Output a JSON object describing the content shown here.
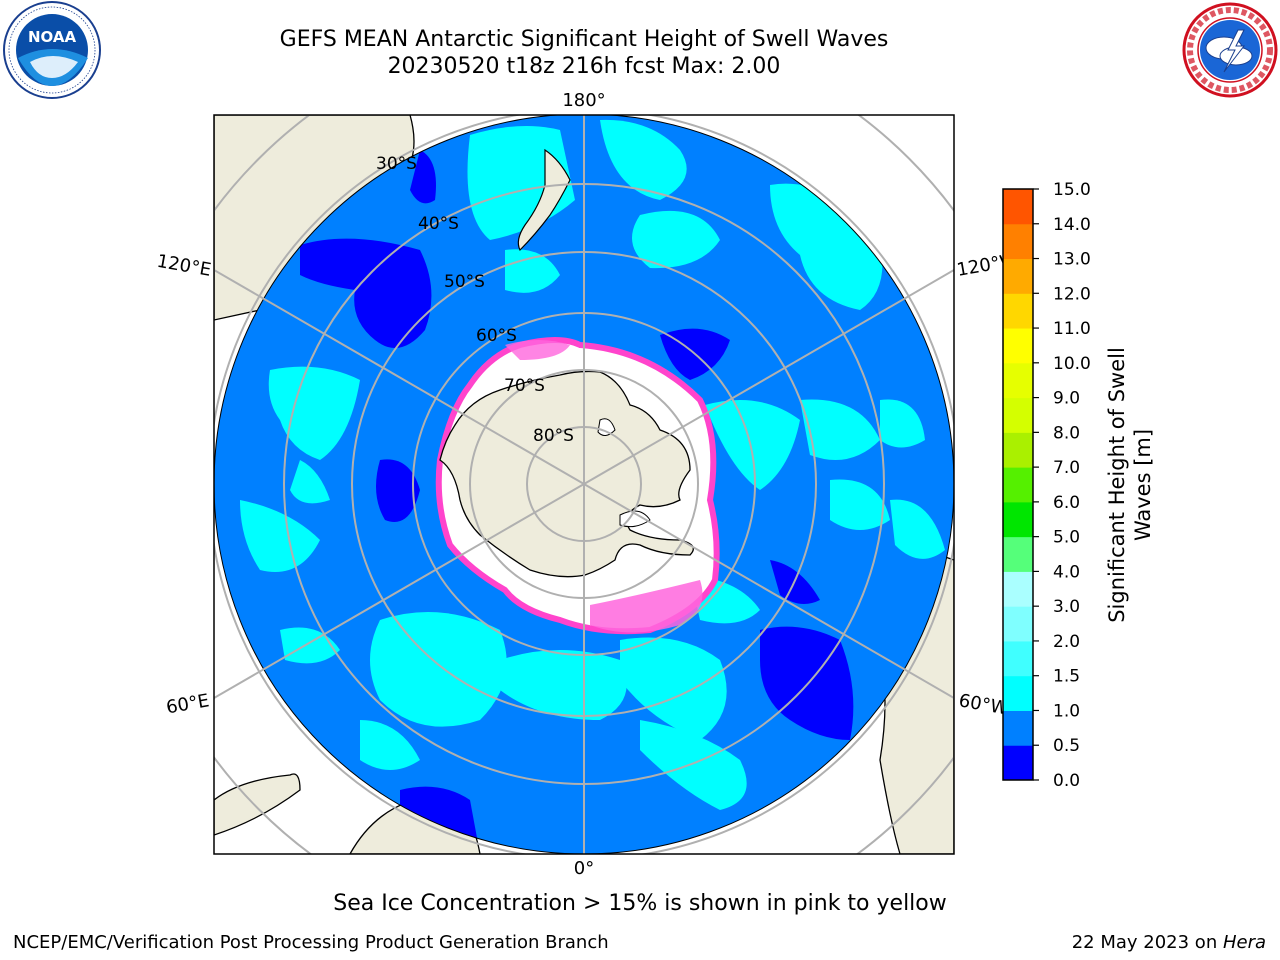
{
  "header": {
    "title_line1": "GEFS MEAN Antarctic Significant Height of Swell Waves",
    "title_line2": "20230520 t18z 216h fcst   Max: 2.00"
  },
  "logos": {
    "noaa": {
      "icon": "noaa-logo",
      "wordmark": "NOAA",
      "ring_text": "NATIONAL OCEANIC AND ATMOSPHERIC ADMINISTRATION · U.S. DEPARTMENT OF COMMERCE"
    },
    "nws": {
      "icon": "nws-logo",
      "ring_text": "NATIONAL WEATHER SERVICE"
    }
  },
  "map": {
    "projection": "south-polar-stereographic",
    "longitude_labels": {
      "top": "180°",
      "bottom": "0°",
      "upper_left": "120°E",
      "lower_left": "60°E",
      "upper_right": "120°W",
      "lower_right": "60°W"
    },
    "latitude_labels": [
      "30°S",
      "40°S",
      "50°S",
      "60°S",
      "70°S",
      "80°S"
    ],
    "colors": {
      "ocean_main": "#0080ff",
      "ocean_low": "#0000ff",
      "ocean_mid": "#00ffff",
      "land": "#eeecdc",
      "ice_edge": "#ff44cc",
      "gridline": "#b0b0b0"
    }
  },
  "colorbar": {
    "label_line1": "Significant Height of Swell",
    "label_line2": "Waves [m]",
    "ticks": [
      "0.0",
      "0.5",
      "1.0",
      "1.5",
      "2.0",
      "3.0",
      "4.0",
      "5.0",
      "6.0",
      "7.0",
      "8.0",
      "9.0",
      "10.0",
      "11.0",
      "12.0",
      "13.0",
      "14.0",
      "15.0"
    ],
    "colors": [
      "#0000ff",
      "#0080ff",
      "#00ffff",
      "#40ffff",
      "#7fffff",
      "#aaffff",
      "#55ff7a",
      "#00e600",
      "#55f000",
      "#aaf000",
      "#d4ff00",
      "#e6ff00",
      "#ffff00",
      "#ffd700",
      "#ffaa00",
      "#ff8000",
      "#ff5500",
      "#ff2a00",
      "#ff0000"
    ]
  },
  "footnote": "Sea Ice Concentration > 15% is shown in pink to yellow",
  "footer": {
    "left": "NCEP/EMC/Verification Post Processing Product Generation Branch",
    "right_prefix": "22 May 2023 on ",
    "right_host": "Hera"
  }
}
